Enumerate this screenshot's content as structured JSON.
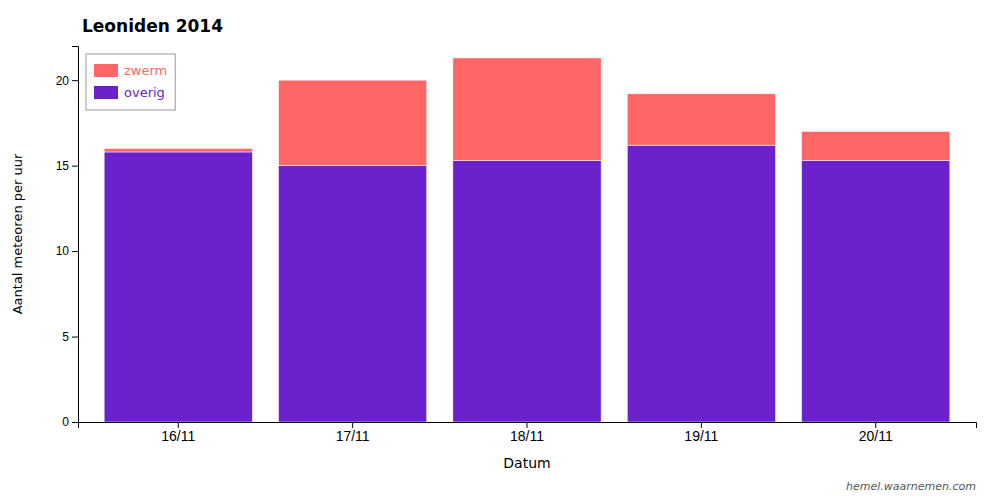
{
  "chart_data": {
    "type": "bar",
    "title": "Leoniden 2014",
    "xlabel": "Datum",
    "ylabel": "Aantal meteoren per uur",
    "categories": [
      "16/11",
      "17/11",
      "18/11",
      "19/11",
      "20/11"
    ],
    "series": [
      {
        "name": "overig",
        "color": "#6B22CC",
        "values": [
          15.8,
          15.0,
          15.3,
          16.2,
          15.3
        ]
      },
      {
        "name": "zwerm",
        "color": "#FF6666",
        "values": [
          0.2,
          5.0,
          6.0,
          3.0,
          1.7
        ]
      }
    ],
    "stacked": true,
    "ylim": [
      0,
      22
    ],
    "yticks": [
      0,
      5,
      10,
      15,
      20
    ],
    "legend": "upper left",
    "grid": false,
    "annotations": [
      "hemel.waarnemen.com"
    ]
  }
}
